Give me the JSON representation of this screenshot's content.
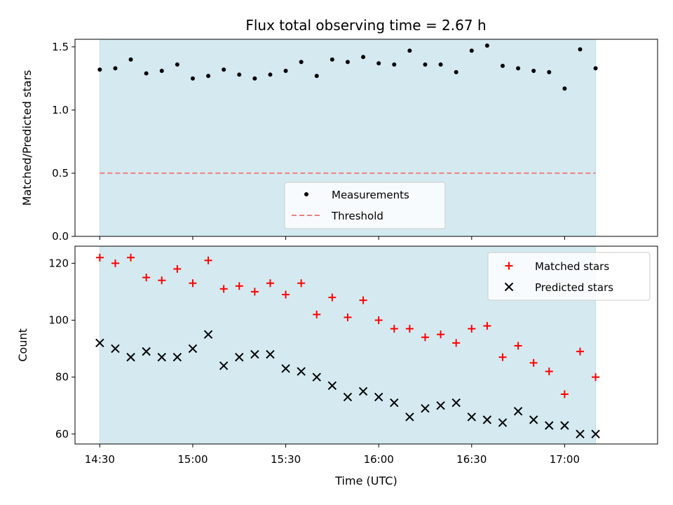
{
  "title": "Flux total observing time = 2.67 h",
  "colors": {
    "observing_band": "#d4eaf0",
    "band_edge": "#c5dfe8",
    "measurement": "#000000",
    "threshold": "#f08080",
    "matched": "#ff0000",
    "predicted": "#000000"
  },
  "chart_data": [
    {
      "type": "scatter",
      "ylabel": "Matched/Predicted stars",
      "ylim": [
        0,
        1.56
      ],
      "yticks": [
        0.0,
        0.5,
        1.0,
        1.5
      ],
      "ytick_labels": [
        "0.0",
        "0.5",
        "1.0",
        "1.5"
      ],
      "xlim": [
        "14:22",
        "17:30"
      ],
      "observing_band": [
        "14:30",
        "17:10"
      ],
      "series": [
        {
          "name": "Measurements",
          "marker": "dot",
          "x": [
            "14:30",
            "14:35",
            "14:40",
            "14:45",
            "14:50",
            "14:55",
            "15:00",
            "15:05",
            "15:10",
            "15:15",
            "15:20",
            "15:25",
            "15:30",
            "15:35",
            "15:40",
            "15:45",
            "15:50",
            "15:55",
            "16:00",
            "16:05",
            "16:10",
            "16:15",
            "16:20",
            "16:25",
            "16:30",
            "16:35",
            "16:40",
            "16:45",
            "16:50",
            "16:55",
            "17:00",
            "17:05",
            "17:10"
          ],
          "values": [
            1.32,
            1.33,
            1.4,
            1.29,
            1.31,
            1.36,
            1.25,
            1.27,
            1.32,
            1.28,
            1.25,
            1.28,
            1.31,
            1.38,
            1.27,
            1.4,
            1.38,
            1.42,
            1.37,
            1.36,
            1.47,
            1.36,
            1.36,
            1.3,
            1.47,
            1.51,
            1.35,
            1.33,
            1.31,
            1.3,
            1.17,
            1.48,
            1.33
          ]
        },
        {
          "name": "Threshold",
          "style": "dashed",
          "value": 0.5
        }
      ],
      "legend": "lower center"
    },
    {
      "type": "scatter",
      "ylabel": "Count",
      "xlabel": "Time (UTC)",
      "ylim": [
        56.5,
        126
      ],
      "yticks": [
        60,
        80,
        100,
        120
      ],
      "ytick_labels": [
        "60",
        "80",
        "100",
        "120"
      ],
      "xlim": [
        "14:22",
        "17:30"
      ],
      "xticks": [
        "14:30",
        "15:00",
        "15:30",
        "16:00",
        "16:30",
        "17:00"
      ],
      "observing_band": [
        "14:30",
        "17:10"
      ],
      "series": [
        {
          "name": "Matched stars",
          "marker": "+",
          "x": [
            "14:30",
            "14:35",
            "14:40",
            "14:45",
            "14:50",
            "14:55",
            "15:00",
            "15:05",
            "15:10",
            "15:15",
            "15:20",
            "15:25",
            "15:30",
            "15:35",
            "15:40",
            "15:45",
            "15:50",
            "15:55",
            "16:00",
            "16:05",
            "16:10",
            "16:15",
            "16:20",
            "16:25",
            "16:30",
            "16:35",
            "16:40",
            "16:45",
            "16:50",
            "16:55",
            "17:00",
            "17:05",
            "17:10"
          ],
          "values": [
            122,
            120,
            122,
            115,
            114,
            118,
            113,
            121,
            111,
            112,
            110,
            113,
            109,
            113,
            102,
            108,
            101,
            107,
            100,
            97,
            97,
            94,
            95,
            92,
            97,
            98,
            87,
            91,
            85,
            82,
            74,
            89,
            80
          ]
        },
        {
          "name": "Predicted stars",
          "marker": "x",
          "x": [
            "14:30",
            "14:35",
            "14:40",
            "14:45",
            "14:50",
            "14:55",
            "15:00",
            "15:05",
            "15:10",
            "15:15",
            "15:20",
            "15:25",
            "15:30",
            "15:35",
            "15:40",
            "15:45",
            "15:50",
            "15:55",
            "16:00",
            "16:05",
            "16:10",
            "16:15",
            "16:20",
            "16:25",
            "16:30",
            "16:35",
            "16:40",
            "16:45",
            "16:50",
            "16:55",
            "17:00",
            "17:05",
            "17:10"
          ],
          "values": [
            92,
            90,
            87,
            89,
            87,
            87,
            90,
            95,
            84,
            87,
            88,
            88,
            83,
            82,
            80,
            77,
            73,
            75,
            73,
            71,
            66,
            69,
            70,
            71,
            66,
            65,
            64,
            68,
            65,
            63,
            63,
            60,
            60
          ]
        }
      ],
      "legend": "upper right"
    }
  ]
}
